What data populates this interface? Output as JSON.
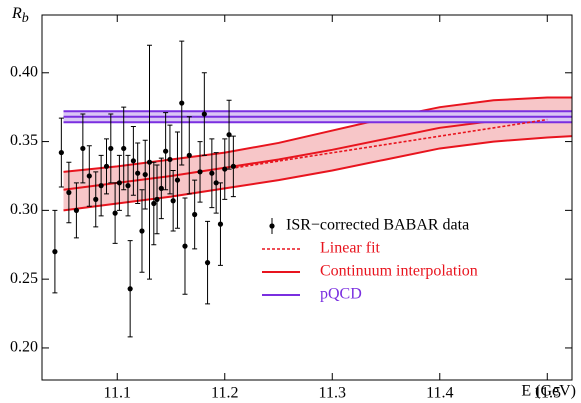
{
  "chart_data": {
    "type": "errorbar",
    "xlabel": "E (GeV)",
    "ylabel": "R",
    "ylabel_subscript": "b",
    "xlim": [
      11.03,
      11.523
    ],
    "ylim": [
      0.1767,
      0.442
    ],
    "xticks": [
      11.1,
      11.2,
      11.3,
      11.4,
      11.5
    ],
    "yticks": [
      {
        "value": 0.2,
        "label": "0.20"
      },
      0.25,
      {
        "value": 0.3,
        "label": "0.30"
      },
      0.35,
      {
        "value": 0.4,
        "label": "0.40"
      }
    ],
    "legend": "lower right",
    "series": [
      {
        "name": "ISR−corrected BABAR data",
        "kind": "errorbar",
        "color": "#000000",
        "x": [
          11.042,
          11.048,
          11.055,
          11.062,
          11.068,
          11.074,
          11.08,
          11.085,
          11.09,
          11.094,
          11.098,
          11.102,
          11.106,
          11.11,
          11.112,
          11.115,
          11.119,
          11.123,
          11.126,
          11.13,
          11.134,
          11.137,
          11.141,
          11.145,
          11.149,
          11.152,
          11.156,
          11.16,
          11.163,
          11.167,
          11.172,
          11.177,
          11.181,
          11.184,
          11.188,
          11.192,
          11.196,
          11.2,
          11.204,
          11.208
        ],
        "values": [
          0.27,
          0.342,
          0.313,
          0.3,
          0.345,
          0.325,
          0.308,
          0.318,
          0.332,
          0.345,
          0.298,
          0.32,
          0.345,
          0.318,
          0.243,
          0.336,
          0.327,
          0.285,
          0.326,
          0.335,
          0.305,
          0.308,
          0.316,
          0.343,
          0.337,
          0.307,
          0.322,
          0.378,
          0.274,
          0.34,
          0.297,
          0.328,
          0.37,
          0.262,
          0.327,
          0.32,
          0.29,
          0.33,
          0.355,
          0.332
        ],
        "errors": [
          0.03,
          0.025,
          0.022,
          0.02,
          0.025,
          0.022,
          0.02,
          0.022,
          0.02,
          0.025,
          0.022,
          0.02,
          0.03,
          0.022,
          0.035,
          0.025,
          0.022,
          0.03,
          0.025,
          0.085,
          0.03,
          0.025,
          0.022,
          0.028,
          0.025,
          0.022,
          0.035,
          0.045,
          0.035,
          0.028,
          0.025,
          0.022,
          0.03,
          0.03,
          0.025,
          0.022,
          0.03,
          0.022,
          0.025,
          0.022
        ]
      },
      {
        "name": "Linear fit",
        "kind": "dashed",
        "color": "#e8141e",
        "x": [
          11.21,
          11.5
        ],
        "values": [
          0.331,
          0.366
        ]
      },
      {
        "name": "Continuum interpolation",
        "kind": "band",
        "color": "#e8141e",
        "fill": "#f7c6c8",
        "x": [
          11.05,
          11.1,
          11.15,
          11.2,
          11.25,
          11.3,
          11.35,
          11.4,
          11.45,
          11.5,
          11.523
        ],
        "values": [
          0.315,
          0.32,
          0.325,
          0.331,
          0.337,
          0.344,
          0.352,
          0.36,
          0.365,
          0.368,
          0.369
        ],
        "upper": [
          0.328,
          0.332,
          0.337,
          0.342,
          0.349,
          0.358,
          0.367,
          0.375,
          0.38,
          0.382,
          0.382
        ],
        "lower": [
          0.3,
          0.305,
          0.31,
          0.316,
          0.322,
          0.329,
          0.337,
          0.345,
          0.35,
          0.353,
          0.354
        ]
      },
      {
        "name": "pQCD",
        "kind": "band",
        "color": "#7a2fe0",
        "fill": "#d9c6f5",
        "x": [
          11.05,
          11.523
        ],
        "values": [
          0.368,
          0.368
        ],
        "upper": [
          0.372,
          0.372
        ],
        "lower": [
          0.364,
          0.364
        ]
      }
    ]
  }
}
